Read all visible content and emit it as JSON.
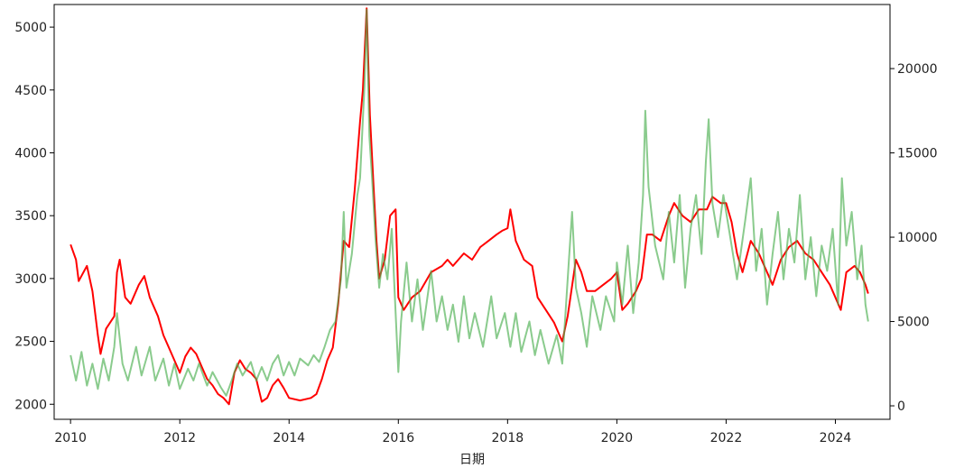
{
  "chart_data": {
    "type": "line",
    "title": "",
    "xlabel": "日期",
    "ylabel_left": "",
    "ylabel_right": "",
    "x_range": [
      2009.7,
      2025.0
    ],
    "y_left_range": [
      1880,
      5180
    ],
    "y_right_range": [
      -800,
      23800
    ],
    "x_ticks": [
      "2010",
      "2012",
      "2014",
      "2016",
      "2018",
      "2020",
      "2022",
      "2024"
    ],
    "y_left_ticks": [
      "2000",
      "2500",
      "3000",
      "3500",
      "4000",
      "4500",
      "5000"
    ],
    "y_right_ticks": [
      "0",
      "5000",
      "10000",
      "15000",
      "20000"
    ],
    "grid": false,
    "series": [
      {
        "axis": "left",
        "color": "#ff0000",
        "points": [
          [
            2010.0,
            3270
          ],
          [
            2010.1,
            3150
          ],
          [
            2010.15,
            2980
          ],
          [
            2010.3,
            3100
          ],
          [
            2010.4,
            2900
          ],
          [
            2010.5,
            2550
          ],
          [
            2010.55,
            2400
          ],
          [
            2010.65,
            2600
          ],
          [
            2010.8,
            2700
          ],
          [
            2010.85,
            3050
          ],
          [
            2010.9,
            3150
          ],
          [
            2011.0,
            2850
          ],
          [
            2011.1,
            2800
          ],
          [
            2011.25,
            2950
          ],
          [
            2011.35,
            3020
          ],
          [
            2011.45,
            2850
          ],
          [
            2011.6,
            2700
          ],
          [
            2011.7,
            2550
          ],
          [
            2011.8,
            2450
          ],
          [
            2011.9,
            2350
          ],
          [
            2012.0,
            2250
          ],
          [
            2012.1,
            2380
          ],
          [
            2012.2,
            2450
          ],
          [
            2012.3,
            2400
          ],
          [
            2012.4,
            2300
          ],
          [
            2012.5,
            2200
          ],
          [
            2012.6,
            2150
          ],
          [
            2012.7,
            2080
          ],
          [
            2012.8,
            2050
          ],
          [
            2012.9,
            2000
          ],
          [
            2013.0,
            2250
          ],
          [
            2013.1,
            2350
          ],
          [
            2013.2,
            2280
          ],
          [
            2013.3,
            2250
          ],
          [
            2013.4,
            2200
          ],
          [
            2013.5,
            2020
          ],
          [
            2013.6,
            2050
          ],
          [
            2013.7,
            2150
          ],
          [
            2013.8,
            2200
          ],
          [
            2013.9,
            2130
          ],
          [
            2014.0,
            2050
          ],
          [
            2014.2,
            2030
          ],
          [
            2014.4,
            2050
          ],
          [
            2014.5,
            2080
          ],
          [
            2014.6,
            2200
          ],
          [
            2014.7,
            2350
          ],
          [
            2014.8,
            2450
          ],
          [
            2014.9,
            2800
          ],
          [
            2015.0,
            3300
          ],
          [
            2015.1,
            3250
          ],
          [
            2015.2,
            3700
          ],
          [
            2015.3,
            4250
          ],
          [
            2015.35,
            4500
          ],
          [
            2015.42,
            5150
          ],
          [
            2015.48,
            4300
          ],
          [
            2015.55,
            3700
          ],
          [
            2015.6,
            3300
          ],
          [
            2015.65,
            3000
          ],
          [
            2015.75,
            3150
          ],
          [
            2015.85,
            3500
          ],
          [
            2015.95,
            3550
          ],
          [
            2016.0,
            2850
          ],
          [
            2016.1,
            2750
          ],
          [
            2016.25,
            2850
          ],
          [
            2016.4,
            2900
          ],
          [
            2016.6,
            3050
          ],
          [
            2016.8,
            3100
          ],
          [
            2016.9,
            3150
          ],
          [
            2017.0,
            3100
          ],
          [
            2017.2,
            3200
          ],
          [
            2017.35,
            3150
          ],
          [
            2017.5,
            3250
          ],
          [
            2017.65,
            3300
          ],
          [
            2017.8,
            3350
          ],
          [
            2017.9,
            3380
          ],
          [
            2018.0,
            3400
          ],
          [
            2018.05,
            3550
          ],
          [
            2018.15,
            3300
          ],
          [
            2018.3,
            3150
          ],
          [
            2018.45,
            3100
          ],
          [
            2018.55,
            2850
          ],
          [
            2018.7,
            2750
          ],
          [
            2018.85,
            2650
          ],
          [
            2018.95,
            2550
          ],
          [
            2019.0,
            2500
          ],
          [
            2019.1,
            2700
          ],
          [
            2019.25,
            3150
          ],
          [
            2019.35,
            3050
          ],
          [
            2019.45,
            2900
          ],
          [
            2019.6,
            2900
          ],
          [
            2019.75,
            2950
          ],
          [
            2019.9,
            3000
          ],
          [
            2020.0,
            3050
          ],
          [
            2020.1,
            2750
          ],
          [
            2020.2,
            2800
          ],
          [
            2020.35,
            2900
          ],
          [
            2020.45,
            3000
          ],
          [
            2020.55,
            3350
          ],
          [
            2020.65,
            3350
          ],
          [
            2020.8,
            3300
          ],
          [
            2020.95,
            3500
          ],
          [
            2021.05,
            3600
          ],
          [
            2021.2,
            3500
          ],
          [
            2021.35,
            3450
          ],
          [
            2021.5,
            3550
          ],
          [
            2021.65,
            3550
          ],
          [
            2021.75,
            3650
          ],
          [
            2021.9,
            3600
          ],
          [
            2022.0,
            3600
          ],
          [
            2022.1,
            3450
          ],
          [
            2022.2,
            3200
          ],
          [
            2022.3,
            3050
          ],
          [
            2022.45,
            3300
          ],
          [
            2022.6,
            3200
          ],
          [
            2022.75,
            3050
          ],
          [
            2022.85,
            2950
          ],
          [
            2023.0,
            3150
          ],
          [
            2023.15,
            3250
          ],
          [
            2023.3,
            3300
          ],
          [
            2023.45,
            3200
          ],
          [
            2023.6,
            3150
          ],
          [
            2023.75,
            3050
          ],
          [
            2023.9,
            2950
          ],
          [
            2024.0,
            2850
          ],
          [
            2024.1,
            2750
          ],
          [
            2024.2,
            3050
          ],
          [
            2024.35,
            3100
          ],
          [
            2024.45,
            3050
          ],
          [
            2024.55,
            2950
          ],
          [
            2024.6,
            2880
          ]
        ]
      },
      {
        "axis": "right",
        "color": "#4caf50",
        "opacity": 0.65,
        "points": [
          [
            2010.0,
            3000
          ],
          [
            2010.1,
            1500
          ],
          [
            2010.2,
            3200
          ],
          [
            2010.3,
            1200
          ],
          [
            2010.4,
            2500
          ],
          [
            2010.5,
            1000
          ],
          [
            2010.6,
            2800
          ],
          [
            2010.7,
            1500
          ],
          [
            2010.8,
            3500
          ],
          [
            2010.85,
            5500
          ],
          [
            2010.95,
            2500
          ],
          [
            2011.05,
            1500
          ],
          [
            2011.2,
            3500
          ],
          [
            2011.3,
            1800
          ],
          [
            2011.45,
            3500
          ],
          [
            2011.55,
            1500
          ],
          [
            2011.7,
            2800
          ],
          [
            2011.8,
            1200
          ],
          [
            2011.9,
            2500
          ],
          [
            2012.0,
            1000
          ],
          [
            2012.15,
            2200
          ],
          [
            2012.25,
            1500
          ],
          [
            2012.35,
            2500
          ],
          [
            2012.5,
            1200
          ],
          [
            2012.6,
            2000
          ],
          [
            2012.75,
            1100
          ],
          [
            2012.85,
            600
          ],
          [
            2012.95,
            1500
          ],
          [
            2013.05,
            2500
          ],
          [
            2013.15,
            1800
          ],
          [
            2013.3,
            2600
          ],
          [
            2013.4,
            1500
          ],
          [
            2013.5,
            2300
          ],
          [
            2013.6,
            1500
          ],
          [
            2013.7,
            2500
          ],
          [
            2013.8,
            3000
          ],
          [
            2013.9,
            1800
          ],
          [
            2014.0,
            2600
          ],
          [
            2014.1,
            1800
          ],
          [
            2014.2,
            2800
          ],
          [
            2014.35,
            2400
          ],
          [
            2014.45,
            3000
          ],
          [
            2014.55,
            2600
          ],
          [
            2014.65,
            3500
          ],
          [
            2014.75,
            4500
          ],
          [
            2014.85,
            5000
          ],
          [
            2014.95,
            7500
          ],
          [
            2015.0,
            11500
          ],
          [
            2015.05,
            7000
          ],
          [
            2015.15,
            9000
          ],
          [
            2015.25,
            12500
          ],
          [
            2015.3,
            13500
          ],
          [
            2015.38,
            19000
          ],
          [
            2015.42,
            23500
          ],
          [
            2015.47,
            16000
          ],
          [
            2015.52,
            13500
          ],
          [
            2015.58,
            10000
          ],
          [
            2015.65,
            7000
          ],
          [
            2015.72,
            9000
          ],
          [
            2015.8,
            7500
          ],
          [
            2015.88,
            10500
          ],
          [
            2015.95,
            5500
          ],
          [
            2016.0,
            2000
          ],
          [
            2016.05,
            5000
          ],
          [
            2016.15,
            8500
          ],
          [
            2016.25,
            5000
          ],
          [
            2016.35,
            7500
          ],
          [
            2016.45,
            4500
          ],
          [
            2016.6,
            8000
          ],
          [
            2016.7,
            5000
          ],
          [
            2016.8,
            6500
          ],
          [
            2016.9,
            4500
          ],
          [
            2017.0,
            6000
          ],
          [
            2017.1,
            3800
          ],
          [
            2017.2,
            6500
          ],
          [
            2017.3,
            4000
          ],
          [
            2017.4,
            5500
          ],
          [
            2017.55,
            3500
          ],
          [
            2017.7,
            6500
          ],
          [
            2017.8,
            4000
          ],
          [
            2017.95,
            5500
          ],
          [
            2018.05,
            3500
          ],
          [
            2018.15,
            5500
          ],
          [
            2018.25,
            3200
          ],
          [
            2018.4,
            5000
          ],
          [
            2018.5,
            3000
          ],
          [
            2018.6,
            4500
          ],
          [
            2018.75,
            2500
          ],
          [
            2018.9,
            4200
          ],
          [
            2019.0,
            2500
          ],
          [
            2019.05,
            5000
          ],
          [
            2019.12,
            8500
          ],
          [
            2019.18,
            11500
          ],
          [
            2019.25,
            7000
          ],
          [
            2019.35,
            5500
          ],
          [
            2019.45,
            3500
          ],
          [
            2019.55,
            6500
          ],
          [
            2019.7,
            4500
          ],
          [
            2019.8,
            6500
          ],
          [
            2019.95,
            5000
          ],
          [
            2020.0,
            8500
          ],
          [
            2020.1,
            6000
          ],
          [
            2020.2,
            9500
          ],
          [
            2020.3,
            5500
          ],
          [
            2020.4,
            8500
          ],
          [
            2020.48,
            12500
          ],
          [
            2020.52,
            17500
          ],
          [
            2020.58,
            13000
          ],
          [
            2020.7,
            9500
          ],
          [
            2020.85,
            7500
          ],
          [
            2020.95,
            11500
          ],
          [
            2021.05,
            8500
          ],
          [
            2021.15,
            12500
          ],
          [
            2021.25,
            7000
          ],
          [
            2021.35,
            10500
          ],
          [
            2021.45,
            12500
          ],
          [
            2021.55,
            9000
          ],
          [
            2021.63,
            14500
          ],
          [
            2021.68,
            17000
          ],
          [
            2021.75,
            12000
          ],
          [
            2021.85,
            10000
          ],
          [
            2021.95,
            12500
          ],
          [
            2022.05,
            10500
          ],
          [
            2022.2,
            7500
          ],
          [
            2022.35,
            11000
          ],
          [
            2022.45,
            13500
          ],
          [
            2022.55,
            8000
          ],
          [
            2022.65,
            10500
          ],
          [
            2022.75,
            6000
          ],
          [
            2022.85,
            9000
          ],
          [
            2022.95,
            11500
          ],
          [
            2023.05,
            7500
          ],
          [
            2023.15,
            10500
          ],
          [
            2023.25,
            8500
          ],
          [
            2023.35,
            12500
          ],
          [
            2023.45,
            7500
          ],
          [
            2023.55,
            10000
          ],
          [
            2023.65,
            6500
          ],
          [
            2023.75,
            9500
          ],
          [
            2023.85,
            8000
          ],
          [
            2023.95,
            10500
          ],
          [
            2024.05,
            6000
          ],
          [
            2024.12,
            13500
          ],
          [
            2024.2,
            9500
          ],
          [
            2024.3,
            11500
          ],
          [
            2024.4,
            7500
          ],
          [
            2024.48,
            9500
          ],
          [
            2024.55,
            6000
          ],
          [
            2024.6,
            5000
          ]
        ]
      }
    ]
  }
}
